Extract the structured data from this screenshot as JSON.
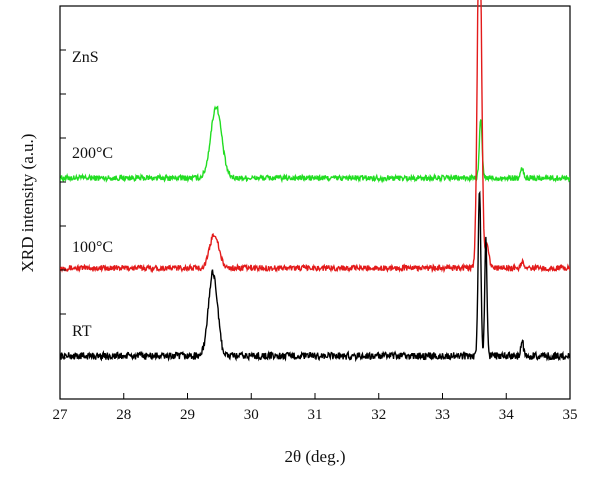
{
  "chart_data": {
    "type": "line",
    "title": "",
    "xlabel": "2θ (deg.)",
    "ylabel": "XRD intensity (a.u.)",
    "xlim": [
      27,
      35
    ],
    "x_ticks": [
      "27",
      "28",
      "29",
      "30",
      "31",
      "32",
      "33",
      "34",
      "35"
    ],
    "y_ticks": "unlabeled",
    "grid": false,
    "legend": "none (inline labels)",
    "top_label": "ZnS",
    "series": [
      {
        "name": "200°C",
        "color": "#22dd22",
        "baseline": 0.38,
        "noise": 0.045,
        "peaks": [
          {
            "x": 29.45,
            "height": 1.15,
            "width": 0.12
          },
          {
            "x": 33.6,
            "height": 0.95,
            "width": 0.03
          },
          {
            "x": 34.25,
            "height": 0.15,
            "width": 0.03
          }
        ]
      },
      {
        "name": "100°C",
        "color": "#e31b1b",
        "baseline": 0.33,
        "noise": 0.045,
        "peaks": [
          {
            "x": 29.42,
            "height": 0.55,
            "width": 0.1
          },
          {
            "x": 33.58,
            "height": 6.0,
            "width": 0.045
          },
          {
            "x": 33.7,
            "height": 0.4,
            "width": 0.04
          },
          {
            "x": 34.25,
            "height": 0.1,
            "width": 0.03
          }
        ]
      },
      {
        "name": "RT",
        "color": "#000000",
        "baseline": 0.32,
        "noise": 0.06,
        "peaks": [
          {
            "x": 29.4,
            "height": 1.35,
            "width": 0.1
          },
          {
            "x": 33.58,
            "height": 2.7,
            "width": 0.03
          },
          {
            "x": 33.68,
            "height": 1.9,
            "width": 0.025
          },
          {
            "x": 34.25,
            "height": 0.28,
            "width": 0.025
          }
        ]
      }
    ]
  }
}
